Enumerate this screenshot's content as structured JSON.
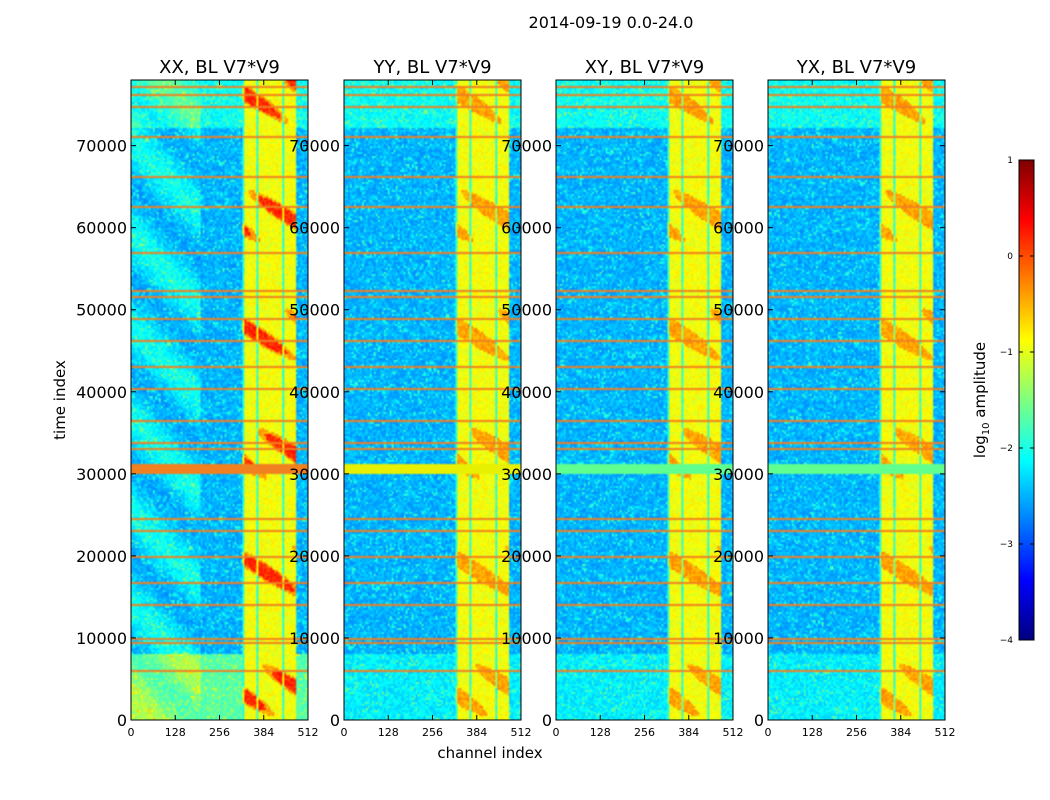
{
  "figure": {
    "suptitle": "2014-09-19 0.0-24.0"
  },
  "chart_data": {
    "type": "heatmap",
    "panels": [
      {
        "title": "XX, BL V7*V9",
        "pol": "XX"
      },
      {
        "title": "YY, BL V7*V9",
        "pol": "YY"
      },
      {
        "title": "XY, BL V7*V9",
        "pol": "XY"
      },
      {
        "title": "YX, BL V7*V9",
        "pol": "YX"
      }
    ],
    "xlabel": "channel index",
    "ylabel": "time index",
    "xlim": [
      0,
      512
    ],
    "ylim": [
      0,
      78000
    ],
    "xticks": [
      0,
      128,
      256,
      384,
      512
    ],
    "xtick_labels": [
      "0",
      "128",
      "256",
      "384",
      "512"
    ],
    "yticks": [
      0,
      10000,
      20000,
      30000,
      40000,
      50000,
      60000,
      70000
    ],
    "ytick_labels": [
      "0",
      "10000",
      "20000",
      "30000",
      "40000",
      "50000",
      "60000",
      "70000"
    ],
    "rfi_channel_band": [
      325,
      475
    ],
    "rfi_rows": [
      30400,
      30800,
      31200,
      9500,
      10000,
      51600,
      52300,
      33200,
      33800,
      16800,
      23200,
      24600,
      46300,
      49000,
      43200,
      40500,
      36600,
      57000,
      62600,
      66400,
      71200,
      74800,
      76200,
      77200,
      14100,
      20100,
      6200
    ],
    "colorbar": {
      "label_prefix": "log",
      "label_sub": "10",
      "label_suffix": " amplitude",
      "range": [
        -4,
        1
      ],
      "ticks": [
        1,
        0,
        -1,
        -2,
        -3,
        -4
      ],
      "tick_labels": [
        "1",
        "0",
        "−1",
        "−2",
        "−3",
        "−4"
      ],
      "colormap": "jet"
    }
  }
}
